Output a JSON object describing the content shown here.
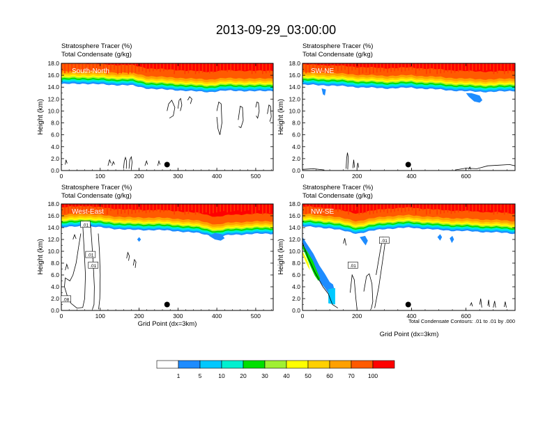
{
  "figure_title": "2013-09-29_03:00:00",
  "colors": [
    "#ffffff",
    "#1e8cff",
    "#00c8ff",
    "#00f0d0",
    "#00e000",
    "#a0f032",
    "#ffff00",
    "#ffd000",
    "#ffa000",
    "#ff5a00",
    "#ff0000"
  ],
  "colorbar_labels": [
    "1",
    "5",
    "10",
    "20",
    "30",
    "40",
    "50",
    "60",
    "70",
    "100"
  ],
  "chart_data": [
    {
      "type": "heatmap",
      "panel": "South-North",
      "title_line1": "Stratosphere Tracer   (%)",
      "title_line2": "Total Condensate   (g/kg)",
      "xlabel": "",
      "ylabel": "Height (km)",
      "xlim": [
        0,
        545
      ],
      "ylim": [
        0,
        18
      ],
      "xticks": [
        "0",
        "100",
        "200",
        "300",
        "400",
        "500"
      ],
      "yticks": [
        "0.0",
        "2.0",
        "4.0",
        "6.0",
        "8.0",
        "10.0",
        "12.0",
        "14.0",
        "16.0",
        "18.0"
      ],
      "front_x": [
        0,
        60,
        120,
        180,
        220,
        260,
        300,
        340,
        380,
        420,
        460,
        500,
        545
      ],
      "front_y": [
        14.5,
        14.6,
        14.4,
        14.3,
        13.8,
        13.6,
        13.5,
        13.3,
        13.2,
        13.4,
        13.4,
        13.3,
        13.4
      ],
      "marker": {
        "x": 272,
        "y": 1.0
      },
      "contour_labels": []
    },
    {
      "type": "heatmap",
      "panel": "SW-NE",
      "title_line1": "Stratosphere Tracer   (%)",
      "title_line2": "Total Condensate   (g/kg)",
      "xlabel": "",
      "ylabel": "Height (km)",
      "xlim": [
        0,
        780
      ],
      "ylim": [
        0,
        18
      ],
      "xticks": [
        "0",
        "200",
        "400",
        "600"
      ],
      "yticks": [
        "0.0",
        "2.0",
        "4.0",
        "6.0",
        "8.0",
        "10.0",
        "12.0",
        "14.0",
        "16.0",
        "18.0"
      ],
      "front_x": [
        0,
        100,
        200,
        300,
        400,
        500,
        600,
        700,
        780
      ],
      "front_y": [
        14.4,
        14.3,
        14.0,
        13.8,
        13.9,
        13.6,
        13.3,
        13.2,
        13.4
      ],
      "marker": {
        "x": 388,
        "y": 1.0
      },
      "contour_labels": []
    },
    {
      "type": "heatmap",
      "panel": "West-East",
      "title_line1": "Stratosphere Tracer   (%)",
      "title_line2": "Total Condensate   (g/kg)",
      "xlabel": "Grid Point (dx=3km)",
      "ylabel": "Height (km)",
      "xlim": [
        0,
        545
      ],
      "ylim": [
        0,
        18
      ],
      "xticks": [
        "0",
        "100",
        "200",
        "300",
        "400",
        "500"
      ],
      "yticks": [
        "0.0",
        "2.0",
        "4.0",
        "6.0",
        "8.0",
        "10.0",
        "12.0",
        "14.0",
        "16.0",
        "18.0"
      ],
      "front_x": [
        0,
        60,
        120,
        180,
        240,
        300,
        360,
        400,
        440,
        480,
        545
      ],
      "front_y": [
        14.0,
        14.3,
        13.9,
        13.6,
        13.6,
        13.4,
        13.0,
        12.4,
        12.8,
        12.9,
        13.0
      ],
      "marker": {
        "x": 272,
        "y": 1.0
      },
      "contour_labels": [
        ".01",
        ".01",
        ".01",
        ".08"
      ]
    },
    {
      "type": "heatmap",
      "panel": "NW-SE",
      "title_line1": "Stratosphere Tracer   (%)",
      "title_line2": "Total Condensate   (g/kg)",
      "xlabel": "Grid Point (dx=3km)",
      "ylabel": "Height (km)",
      "xlim": [
        0,
        780
      ],
      "ylim": [
        0,
        18
      ],
      "xticks": [
        "0",
        "200",
        "400",
        "600"
      ],
      "yticks": [
        "0.0",
        "2.0",
        "4.0",
        "6.0",
        "8.0",
        "10.0",
        "12.0",
        "14.0",
        "16.0",
        "18.0"
      ],
      "front_x": [
        0,
        100,
        200,
        300,
        400,
        500,
        600,
        700,
        780
      ],
      "front_y": [
        14.2,
        13.9,
        13.0,
        13.8,
        14.0,
        13.6,
        13.4,
        13.2,
        13.0
      ],
      "marker": {
        "x": 388,
        "y": 1.0
      },
      "contour_labels": [
        ".01",
        ".01"
      ],
      "footnote": "Total Condensate Contours: .01 to .01 by .000"
    }
  ]
}
